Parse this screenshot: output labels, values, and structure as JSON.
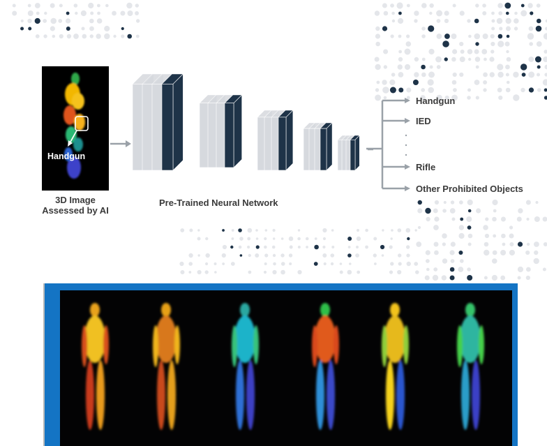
{
  "input": {
    "tag": "Handgun",
    "caption_line1": "3D Image",
    "caption_line2": "Assessed by AI"
  },
  "network": {
    "caption": "Pre-Trained Neural Network"
  },
  "outputs": [
    "Handgun",
    "IED",
    "Rifle",
    "Other Prohibited Objects"
  ],
  "colors": {
    "layer_light": "#d6d9de",
    "layer_dark": "#1e3348",
    "arrow": "#9aa1a8",
    "panel_frame": "#1474c4"
  }
}
